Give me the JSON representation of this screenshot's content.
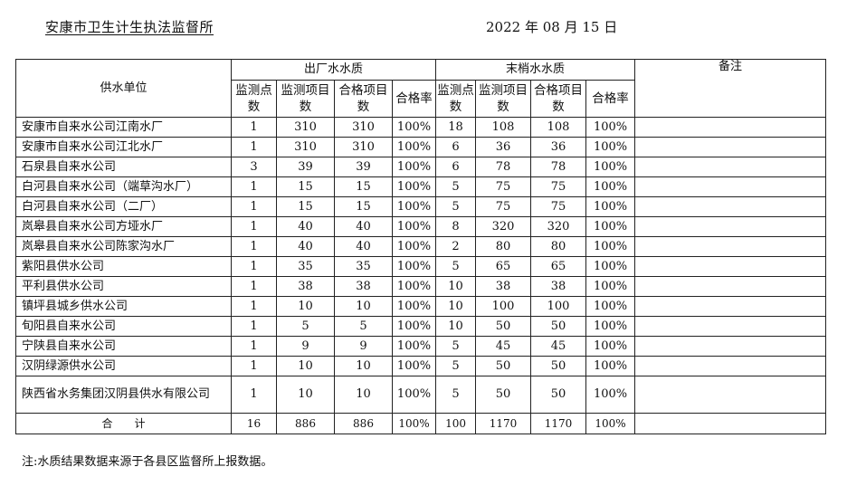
{
  "header": {
    "org": "安康市卫生计生执法监督所",
    "date": "2022 年 08 月 15 日"
  },
  "table": {
    "col_unit": "供水单位",
    "group_factory": "出厂水水质",
    "group_tap": "末梢水水质",
    "col_remark": "备注",
    "sub": [
      "监测点数",
      "监测项目数",
      "合格项目数",
      "合格率",
      "监测点数",
      "监测项目数",
      "合格项目数",
      "合格率"
    ],
    "rows": [
      [
        "安康市自来水公司江南水厂",
        "1",
        "310",
        "310",
        "100%",
        "18",
        "108",
        "108",
        "100%"
      ],
      [
        "安康市自来水公司江北水厂",
        "1",
        "310",
        "310",
        "100%",
        "6",
        "36",
        "36",
        "100%"
      ],
      [
        "石泉县自来水公司",
        "3",
        "39",
        "39",
        "100%",
        "6",
        "78",
        "78",
        "100%"
      ],
      [
        "白河县自来水公司（端草沟水厂）",
        "1",
        "15",
        "15",
        "100%",
        "5",
        "75",
        "75",
        "100%"
      ],
      [
        "白河县自来水公司（二厂）",
        "1",
        "15",
        "15",
        "100%",
        "5",
        "75",
        "75",
        "100%"
      ],
      [
        "岚皋县自来水公司方垭水厂",
        "1",
        "40",
        "40",
        "100%",
        "8",
        "320",
        "320",
        "100%"
      ],
      [
        "岚皋县自来水公司陈家沟水厂",
        "1",
        "40",
        "40",
        "100%",
        "2",
        "80",
        "80",
        "100%"
      ],
      [
        "紫阳县供水公司",
        "1",
        "35",
        "35",
        "100%",
        "5",
        "65",
        "65",
        "100%"
      ],
      [
        "平利县供水公司",
        "1",
        "38",
        "38",
        "100%",
        "10",
        "38",
        "38",
        "100%"
      ],
      [
        "镇坪县城乡供水公司",
        "1",
        "10",
        "10",
        "100%",
        "10",
        "100",
        "100",
        "100%"
      ],
      [
        "旬阳县自来水公司",
        "1",
        "5",
        "5",
        "100%",
        "10",
        "50",
        "50",
        "100%"
      ],
      [
        "宁陕县自来水公司",
        "1",
        "9",
        "9",
        "100%",
        "5",
        "45",
        "45",
        "100%"
      ],
      [
        "汉阴绿源供水公司",
        "1",
        "10",
        "10",
        "100%",
        "5",
        "50",
        "50",
        "100%"
      ],
      [
        "陕西省水务集团汉阴县供水有限公司",
        "1",
        "10",
        "10",
        "100%",
        "5",
        "50",
        "50",
        "100%"
      ]
    ],
    "total": [
      "合　　计",
      "16",
      "886",
      "886",
      "100%",
      "100",
      "1170",
      "1170",
      "100%"
    ]
  },
  "note": "注:水质结果数据来源于各县区监督所上报数据。"
}
